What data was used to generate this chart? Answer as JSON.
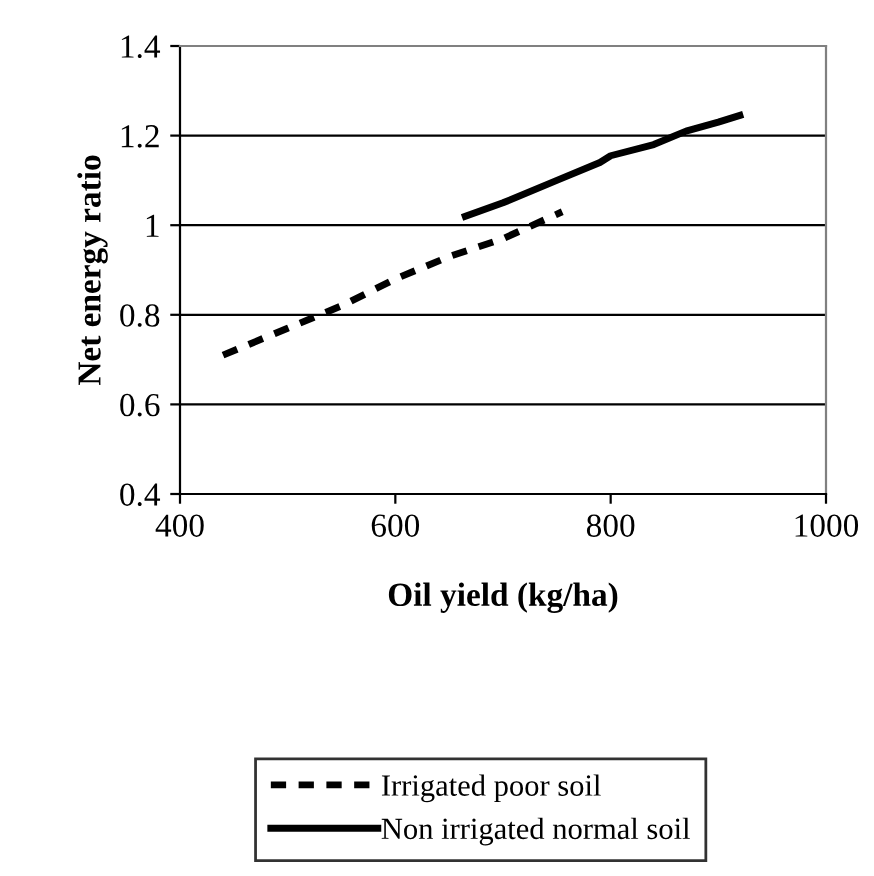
{
  "chart_data": {
    "type": "line",
    "xlabel": "Oil yield (kg/ha)",
    "ylabel": "Net energy ratio",
    "xlim": [
      400,
      1000
    ],
    "xticks": [
      400,
      600,
      800,
      1000
    ],
    "ylim": [
      0.4,
      1.4
    ],
    "yticks": [
      0.4,
      0.6,
      0.8,
      1,
      1.2,
      1.4
    ],
    "grid": "y",
    "legend": "bottom",
    "series": [
      {
        "name": "Irrigated poor soil",
        "color": "#000000",
        "line_style": "dashed",
        "x": [
          440,
          500,
          550,
          600,
          650,
          700,
          755
        ],
        "values": [
          0.71,
          0.77,
          0.82,
          0.88,
          0.93,
          0.97,
          1.03
        ]
      },
      {
        "name": "Non irrigated normal soil",
        "color": "#000000",
        "line_style": "solid",
        "x": [
          665,
          700,
          750,
          790,
          800,
          840,
          870,
          900,
          920
        ],
        "values": [
          1.02,
          1.05,
          1.1,
          1.14,
          1.155,
          1.18,
          1.21,
          1.23,
          1.245
        ]
      }
    ]
  }
}
